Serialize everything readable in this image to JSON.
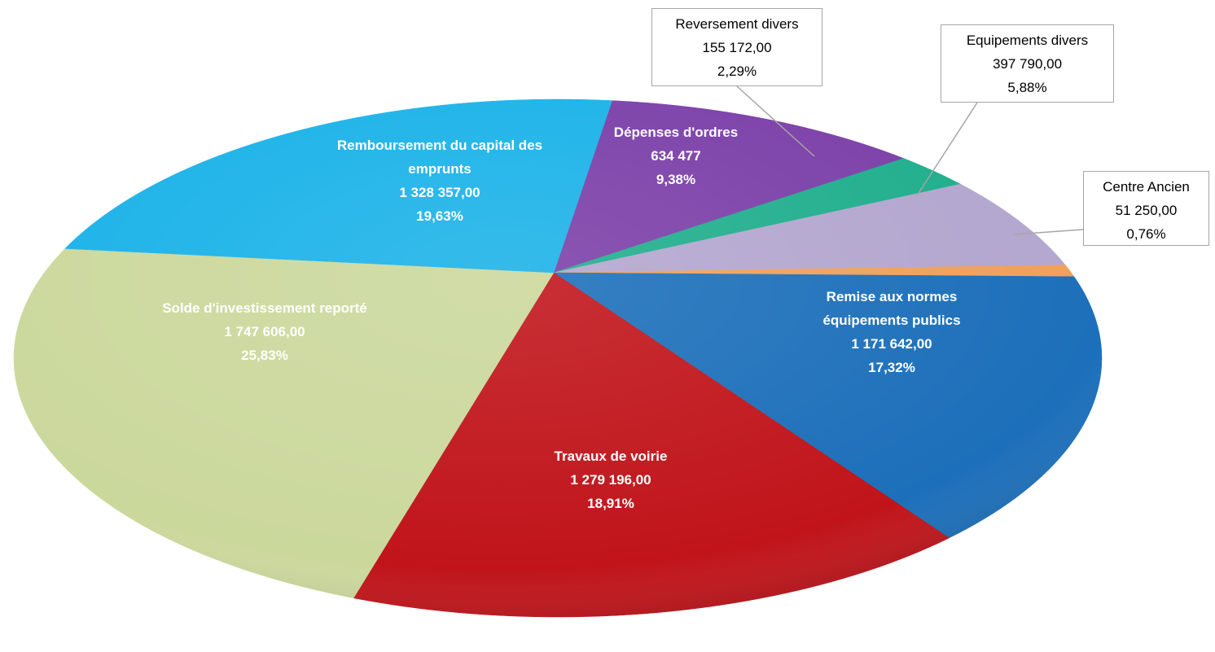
{
  "chart_data": {
    "type": "pie",
    "categories": [
      "Dépenses d'ordres",
      "Reversement divers",
      "Equipements divers",
      "Centre Ancien",
      "Remise aux normes équipements publics",
      "Travaux de voirie",
      "Solde d'investissement reporté",
      "Remboursement du capital des emprunts"
    ],
    "values": [
      634477,
      155172,
      397790,
      51250,
      1171642,
      1279196,
      1747606,
      1328357
    ],
    "value_labels": [
      "634 477",
      "155 172,00",
      "397 790,00",
      "51 250,00",
      "1 171 642,00",
      "1 279 196,00",
      "1 747 606,00",
      "1 328 357,00"
    ],
    "percent_labels": [
      "9,38%",
      "2,29%",
      "5,88%",
      "0,76%",
      "17,32%",
      "18,91%",
      "25,83%",
      "19,63%"
    ],
    "colors": [
      "#7b3fa8",
      "#1fae8c",
      "#b3a6cf",
      "#f0a05a",
      "#1c6fba",
      "#c0141a",
      "#cbd89c",
      "#1ab2e8"
    ]
  }
}
